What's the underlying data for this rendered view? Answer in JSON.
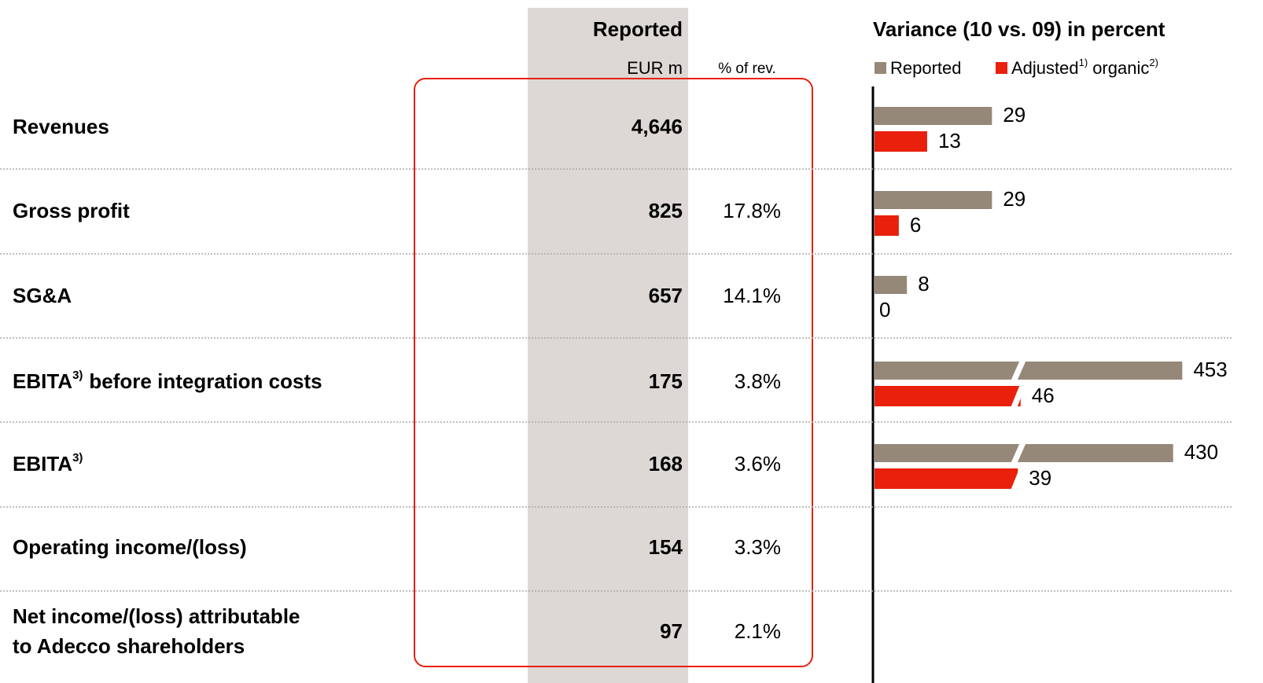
{
  "table": {
    "header": {
      "group": "Reported",
      "col1": "EUR m",
      "col2": "% of rev."
    },
    "rows": [
      {
        "label": [
          "Revenues"
        ],
        "eur": "4,646",
        "pct": null
      },
      {
        "label": [
          "Gross profit"
        ],
        "eur": "825",
        "pct": "17.8%"
      },
      {
        "label": [
          "SG&A"
        ],
        "eur": "657",
        "pct": "14.1%"
      },
      {
        "label": [
          "EBITA"
        ],
        "label_sup": "3)",
        "label_suffix": "before integration costs",
        "eur": "175",
        "pct": "3.8%"
      },
      {
        "label": [
          "EBITA"
        ],
        "label_sup": "3)",
        "eur": "168",
        "pct": "3.6%"
      },
      {
        "label": [
          "Operating income/(loss)"
        ],
        "eur": "154",
        "pct": "3.3%"
      },
      {
        "label": [
          "Net income/(loss) attributable",
          "to Adecco shareholders"
        ],
        "eur": "97",
        "pct": "2.1%"
      }
    ]
  },
  "chart_data": {
    "type": "hbar",
    "title": "Variance (10 vs. 09) in percent",
    "series": [
      {
        "name": "Reported",
        "color": "#968878",
        "values": [
          29,
          29,
          8,
          453,
          430
        ]
      },
      {
        "name": "Adjusted",
        "name_sup": "1)",
        "name_suffix": "organic",
        "name_suffix_sup": "2)",
        "color": "#e8200c",
        "values": [
          13,
          6,
          0,
          46,
          39
        ]
      }
    ]
  }
}
